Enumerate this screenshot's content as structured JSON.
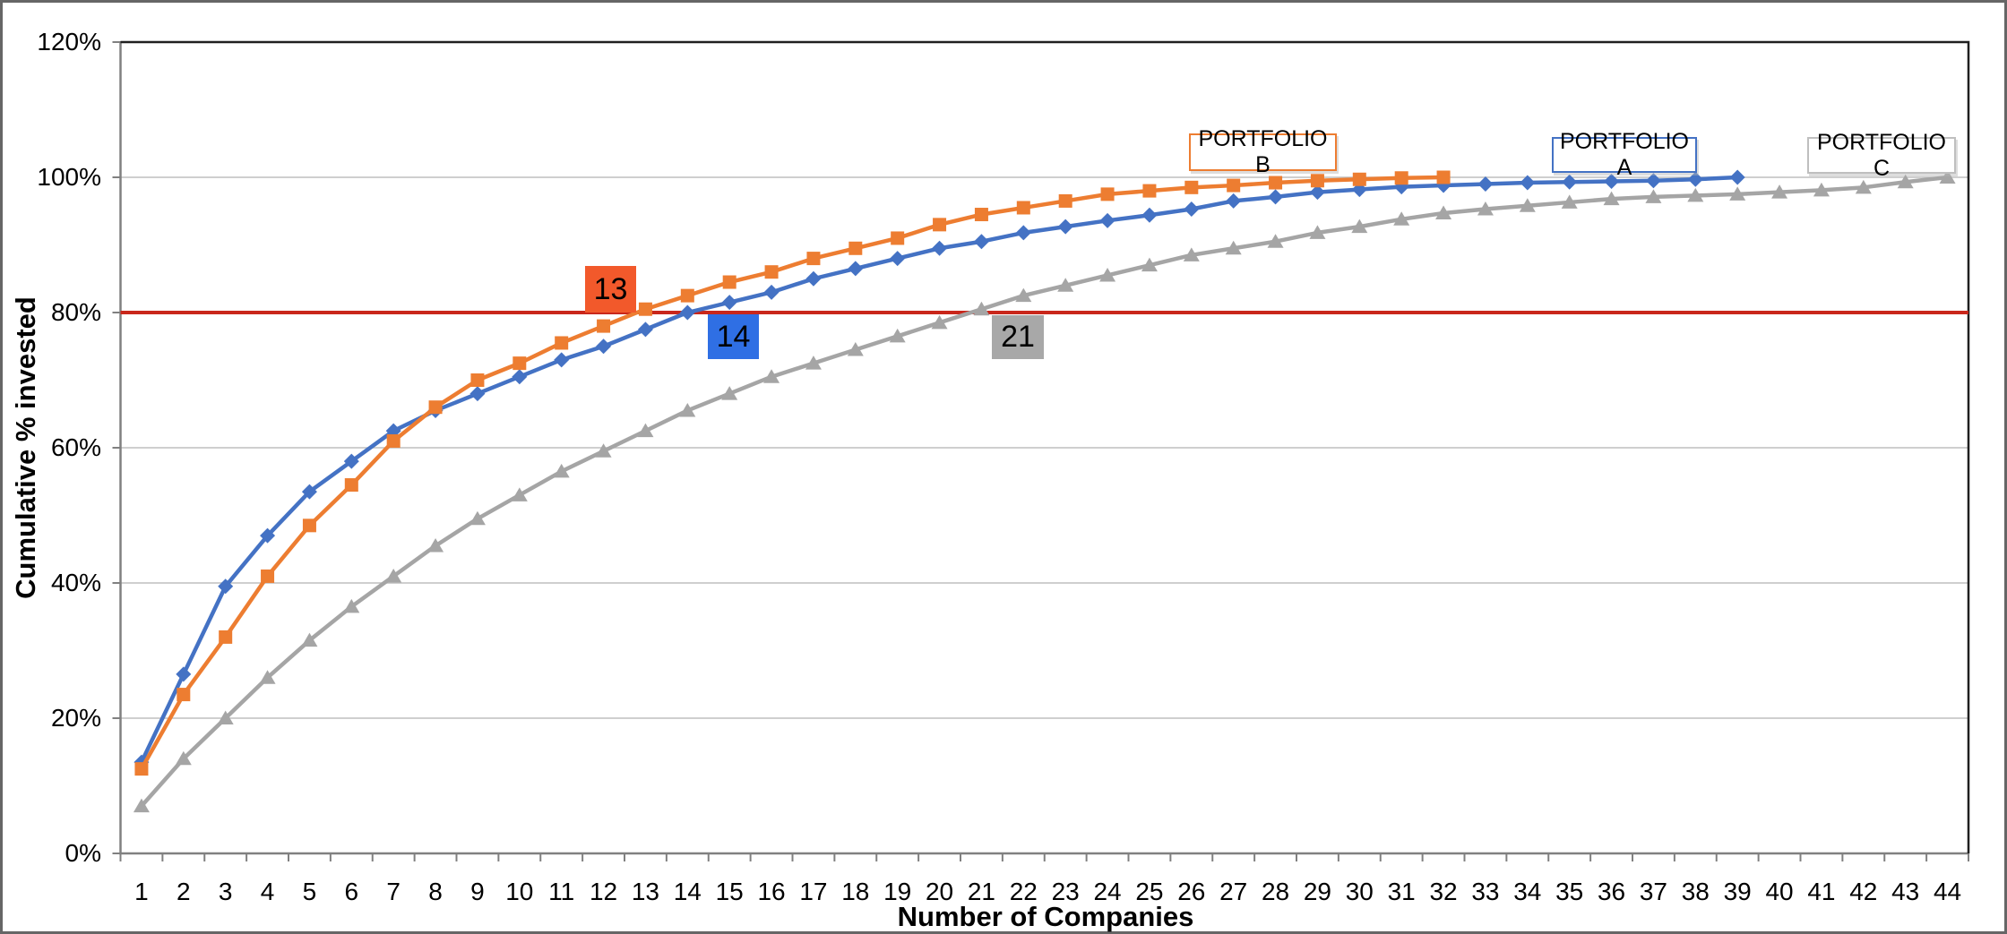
{
  "chart_data": {
    "type": "line",
    "title": "",
    "xlabel": "Number of Companies",
    "ylabel": "Cumulative % invested",
    "ylim": [
      0,
      120
    ],
    "y_ticks": [
      {
        "value": 0,
        "label": "0%"
      },
      {
        "value": 20,
        "label": "20%"
      },
      {
        "value": 40,
        "label": "40%"
      },
      {
        "value": 60,
        "label": "60%"
      },
      {
        "value": 80,
        "label": "80%"
      },
      {
        "value": 100,
        "label": "100%"
      },
      {
        "value": 120,
        "label": "120%"
      }
    ],
    "x": [
      1,
      2,
      3,
      4,
      5,
      6,
      7,
      8,
      9,
      10,
      11,
      12,
      13,
      14,
      15,
      16,
      17,
      18,
      19,
      20,
      21,
      22,
      23,
      24,
      25,
      26,
      27,
      28,
      29,
      30,
      31,
      32,
      33,
      34,
      35,
      36,
      37,
      38,
      39,
      40,
      41,
      42,
      43,
      44
    ],
    "grid": "horizontal",
    "gridline_color": "#BFBFBF",
    "axis_color": "#808080",
    "plot_border_color": "#1f1f1f",
    "series": [
      {
        "name": "PORTFOLIO A",
        "color": "#4472C4",
        "box_border": "#4472C4",
        "marker": "diamond",
        "values": [
          13.5,
          26.5,
          39.5,
          47,
          53.5,
          58,
          62.5,
          65.5,
          68,
          70.5,
          73,
          75,
          77.5,
          80,
          81.5,
          83,
          85,
          86.5,
          88,
          89.5,
          90.5,
          91.8,
          92.7,
          93.6,
          94.4,
          95.3,
          96.5,
          97.1,
          97.8,
          98.2,
          98.6,
          98.8,
          99,
          99.2,
          99.3,
          99.4,
          99.5,
          99.7,
          100
        ]
      },
      {
        "name": "PORTFOLIO B",
        "color": "#ED7D31",
        "box_border": "#ED7D31",
        "marker": "square",
        "values": [
          12.5,
          23.5,
          32,
          41,
          48.5,
          54.5,
          61,
          66,
          70,
          72.5,
          75.5,
          78,
          80.5,
          82.5,
          84.5,
          86,
          88,
          89.5,
          91,
          93,
          94.5,
          95.5,
          96.5,
          97.5,
          98,
          98.5,
          98.8,
          99.2,
          99.5,
          99.7,
          99.9,
          100
        ]
      },
      {
        "name": "PORTFOLIO C",
        "color": "#A5A5A5",
        "box_border": "#BFBFBF",
        "marker": "triangle",
        "values": [
          7,
          14,
          20,
          26,
          31.5,
          36.5,
          41,
          45.5,
          49.5,
          53,
          56.5,
          59.5,
          62.5,
          65.5,
          68,
          70.5,
          72.5,
          74.5,
          76.5,
          78.5,
          80.5,
          82.5,
          84,
          85.5,
          87,
          88.5,
          89.5,
          90.5,
          91.8,
          92.7,
          93.8,
          94.7,
          95.3,
          95.8,
          96.3,
          96.8,
          97.1,
          97.3,
          97.5,
          97.8,
          98.1,
          98.5,
          99.3,
          100
        ]
      }
    ],
    "reference_line": {
      "value": 80,
      "color": "#C9271B"
    },
    "annotations": [
      {
        "text": "13",
        "bg": "#F2592B",
        "series": "PORTFOLIO B"
      },
      {
        "text": "14",
        "bg": "#2F6FE4",
        "series": "PORTFOLIO A"
      },
      {
        "text": "21",
        "bg": "#A8A8A8",
        "series": "PORTFOLIO C"
      }
    ],
    "legend_position": "floating-boxes-above-curves"
  }
}
